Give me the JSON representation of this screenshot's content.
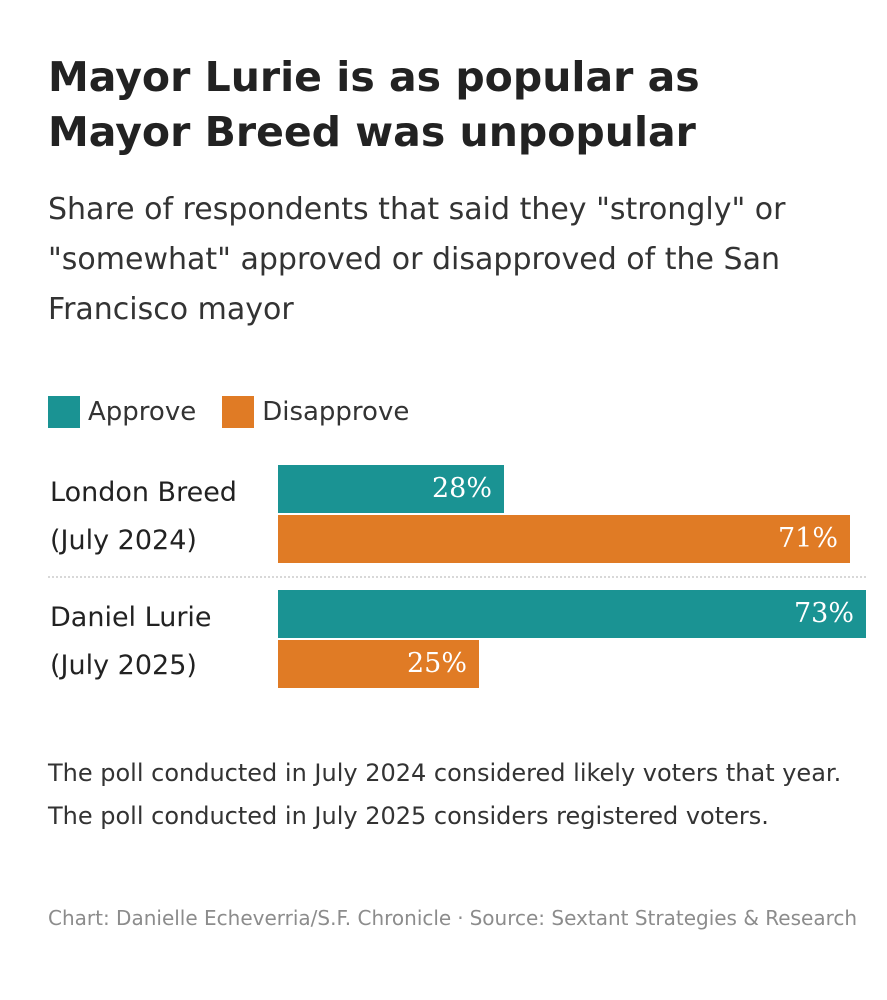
{
  "title": "Mayor Lurie is as popular as Mayor Breed was unpopular",
  "subtitle": "Share of respondents that said they \"strongly\" or \"somewhat\" approved or disapproved of the San Francisco mayor",
  "colors": {
    "approve": "#1a9393",
    "disapprove": "#e07b25"
  },
  "chart_data": {
    "type": "bar",
    "orientation": "horizontal",
    "title": "Mayor Lurie is as popular as Mayor Breed was unpopular",
    "subtitle": "Share of respondents that said they \"strongly\" or \"somewhat\" approved or disapproved of the San Francisco mayor",
    "categories": [
      {
        "name": "London Breed",
        "date": "(July 2024)"
      },
      {
        "name": "Daniel Lurie",
        "date": "(July 2025)"
      }
    ],
    "series": [
      {
        "name": "Approve",
        "values": [
          28,
          73
        ],
        "labels": [
          "28%",
          "73%"
        ],
        "color": "#1a9393"
      },
      {
        "name": "Disapprove",
        "values": [
          71,
          25
        ],
        "labels": [
          "71%",
          "25%"
        ],
        "color": "#e07b25"
      }
    ],
    "xlim": [
      0,
      73
    ],
    "legend": "top-left",
    "grid": false,
    "xlabel": "",
    "ylabel": ""
  },
  "note": "The poll conducted in July 2024 considered likely voters that year. The poll conducted in July 2025 considers registered voters.",
  "credit": {
    "chart": "Chart: Danielle Echeverria/S.F. Chronicle",
    "separator": "·",
    "source": "Source: Sextant Strategies & Research"
  }
}
